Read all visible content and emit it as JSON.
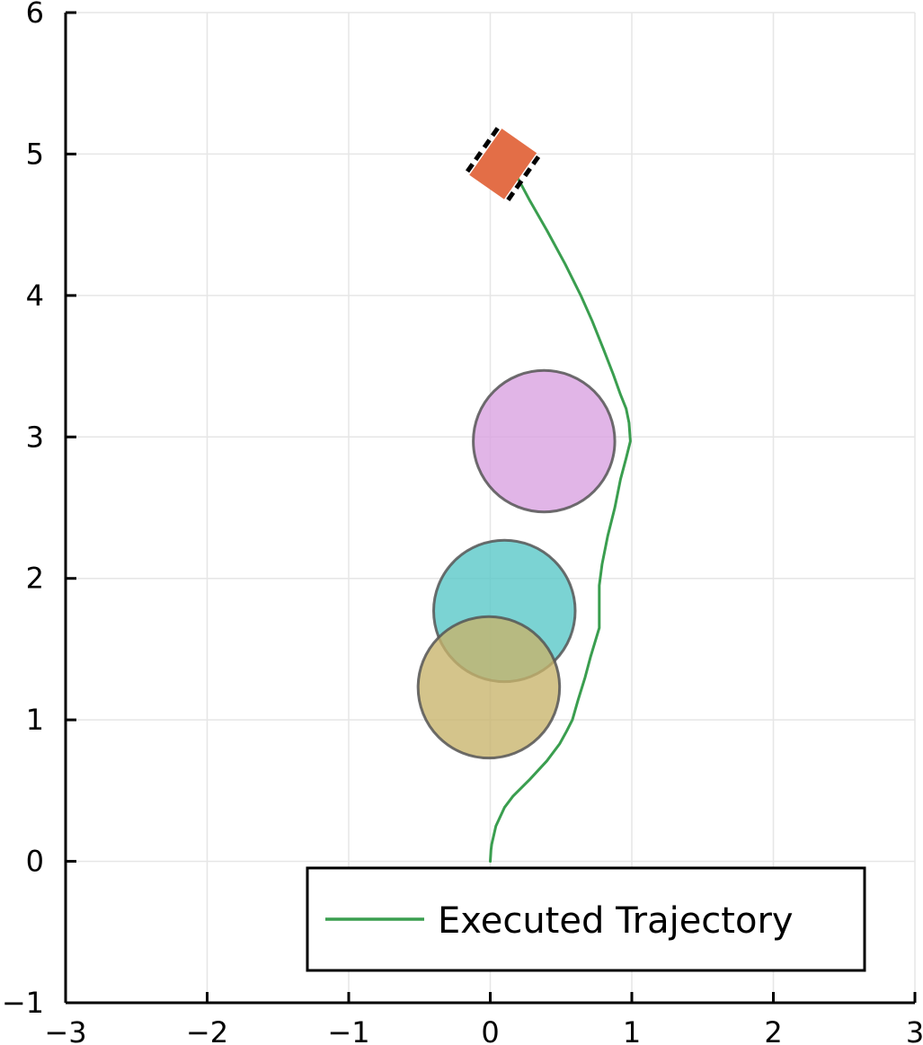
{
  "chart_data": {
    "type": "scatter",
    "title": "",
    "xlabel": "",
    "ylabel": "",
    "xlim": [
      -3,
      3
    ],
    "ylim": [
      -1,
      6
    ],
    "xticks": [
      -3,
      -2,
      -1,
      0,
      1,
      2,
      3
    ],
    "yticks": [
      -1,
      0,
      1,
      2,
      3,
      4,
      5,
      6
    ],
    "xtick_labels": [
      "−3",
      "−2",
      "−1",
      "0",
      "1",
      "2",
      "3"
    ],
    "ytick_labels": [
      "−1",
      "0",
      "1",
      "2",
      "3",
      "4",
      "5",
      "6"
    ],
    "grid": true,
    "legend_position": "bottom-right",
    "series": [
      {
        "name": "Executed Trajectory",
        "color": "#3a9e4f",
        "points": [
          [
            0.0,
            0.0
          ],
          [
            0.005,
            0.08
          ],
          [
            0.01,
            0.12
          ],
          [
            0.04,
            0.25
          ],
          [
            0.1,
            0.38
          ],
          [
            0.16,
            0.46
          ],
          [
            0.28,
            0.58
          ],
          [
            0.4,
            0.71
          ],
          [
            0.49,
            0.83
          ],
          [
            0.54,
            0.92
          ],
          [
            0.58,
            1.0
          ],
          [
            0.62,
            1.14
          ],
          [
            0.67,
            1.3
          ],
          [
            0.71,
            1.45
          ],
          [
            0.77,
            1.65
          ],
          [
            0.77,
            1.8
          ],
          [
            0.77,
            1.95
          ],
          [
            0.79,
            2.1
          ],
          [
            0.83,
            2.3
          ],
          [
            0.88,
            2.5
          ],
          [
            0.92,
            2.7
          ],
          [
            0.96,
            2.85
          ],
          [
            0.99,
            2.97
          ],
          [
            0.98,
            3.1
          ],
          [
            0.96,
            3.2
          ],
          [
            0.92,
            3.3
          ],
          [
            0.87,
            3.44
          ],
          [
            0.8,
            3.62
          ],
          [
            0.72,
            3.82
          ],
          [
            0.64,
            4.0
          ],
          [
            0.53,
            4.22
          ],
          [
            0.4,
            4.46
          ],
          [
            0.28,
            4.67
          ],
          [
            0.2,
            4.82
          ],
          [
            0.15,
            4.9
          ],
          [
            0.12,
            4.93
          ],
          [
            0.1,
            4.95
          ]
        ]
      }
    ],
    "obstacles": [
      {
        "center": [
          0.38,
          2.97
        ],
        "radius": 0.5,
        "color": "#d8a0e0"
      },
      {
        "center": [
          0.1,
          1.77
        ],
        "radius": 0.5,
        "color": "#56c7c7"
      },
      {
        "center": [
          -0.01,
          1.23
        ],
        "radius": 0.5,
        "color": "#c8b46a"
      }
    ],
    "robot": {
      "center": [
        0.09,
        4.93
      ],
      "heading_deg": 55,
      "length": 0.4,
      "width": 0.3,
      "color": "#e36e47"
    }
  }
}
